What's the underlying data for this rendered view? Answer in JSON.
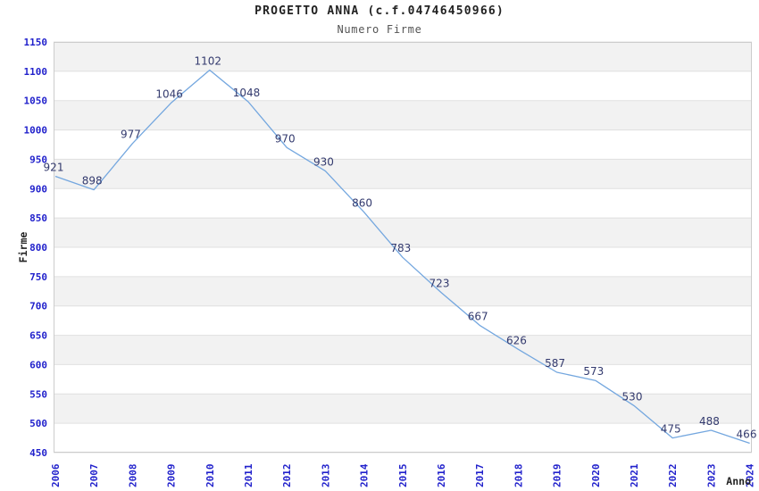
{
  "chart_data": {
    "type": "line",
    "title": "PROGETTO ANNA (c.f.04746450966)",
    "subtitle": "Numero Firme",
    "xlabel": "Anno",
    "ylabel": "Firme",
    "categories": [
      "2006",
      "2007",
      "2008",
      "2009",
      "2010",
      "2011",
      "2012",
      "2013",
      "2014",
      "2015",
      "2016",
      "2017",
      "2018",
      "2019",
      "2020",
      "2021",
      "2022",
      "2023",
      "2024"
    ],
    "values": [
      921,
      898,
      977,
      1046,
      1102,
      1048,
      970,
      930,
      860,
      783,
      723,
      667,
      626,
      587,
      573,
      530,
      475,
      488,
      466
    ],
    "ylim": [
      450,
      1150
    ],
    "ytick_step": 50,
    "grid": true,
    "banded_background": true,
    "legend": "none",
    "colors": {
      "line": "#74A7DF",
      "data_label": "#333A6E",
      "tick_label": "#2222CC",
      "band": "#F2F2F2",
      "band_alt": "#FFFFFF",
      "gridline": "#E0E0E0",
      "plot_border": "#CCCCCC",
      "title": "#222222",
      "subtitle": "#555555",
      "axis_title": "#222222"
    }
  }
}
